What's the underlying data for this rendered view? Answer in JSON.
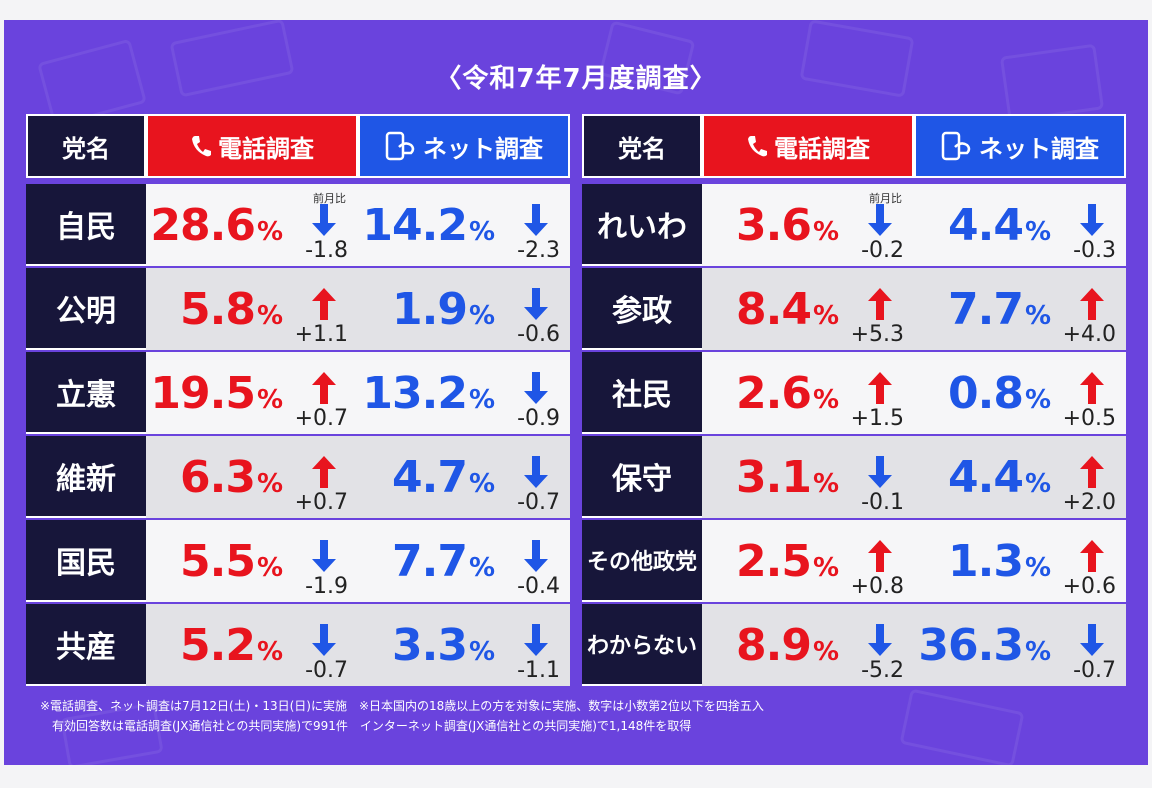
{
  "title": "〈令和7年7月度調査〉",
  "headers": {
    "party": "党名",
    "phone": "電話調査",
    "net": "ネット調査",
    "change_label": "前月比"
  },
  "colors": {
    "background": "#6a43dd",
    "phone": "#e8141e",
    "net": "#1f56e6",
    "party": "#17163a",
    "up": "#e8141e",
    "down": "#1f56e6"
  },
  "icons": {
    "phone": "phone-icon",
    "net": "smartphone-touch-icon"
  },
  "chart_data": {
    "type": "table",
    "title": "〈令和7年7月度調査〉",
    "columns": [
      "党名",
      "電話調査",
      "前月比",
      "ネット調査",
      "前月比"
    ],
    "rows_left": [
      {
        "party": "自民",
        "phone": "28.6",
        "phone_change": "-1.8",
        "net": "14.2",
        "net_change": "-2.3"
      },
      {
        "party": "公明",
        "phone": "5.8",
        "phone_change": "+1.1",
        "net": "1.9",
        "net_change": "-0.6"
      },
      {
        "party": "立憲",
        "phone": "19.5",
        "phone_change": "+0.7",
        "net": "13.2",
        "net_change": "-0.9"
      },
      {
        "party": "維新",
        "phone": "6.3",
        "phone_change": "+0.7",
        "net": "4.7",
        "net_change": "-0.7"
      },
      {
        "party": "国民",
        "phone": "5.5",
        "phone_change": "-1.9",
        "net": "7.7",
        "net_change": "-0.4"
      },
      {
        "party": "共産",
        "phone": "5.2",
        "phone_change": "-0.7",
        "net": "3.3",
        "net_change": "-1.1"
      }
    ],
    "rows_right": [
      {
        "party": "れいわ",
        "phone": "3.6",
        "phone_change": "-0.2",
        "net": "4.4",
        "net_change": "-0.3"
      },
      {
        "party": "参政",
        "phone": "8.4",
        "phone_change": "+5.3",
        "net": "7.7",
        "net_change": "+4.0"
      },
      {
        "party": "社民",
        "phone": "2.6",
        "phone_change": "+1.5",
        "net": "0.8",
        "net_change": "+0.5"
      },
      {
        "party": "保守",
        "phone": "3.1",
        "phone_change": "-0.1",
        "net": "4.4",
        "net_change": "+2.0"
      },
      {
        "party": "その他政党",
        "phone": "2.5",
        "phone_change": "+0.8",
        "net": "1.3",
        "net_change": "+0.6"
      },
      {
        "party": "わからない",
        "phone": "8.9",
        "phone_change": "-5.2",
        "net": "36.3",
        "net_change": "-0.7"
      }
    ],
    "unit": "%"
  },
  "notes": [
    "※電話調査、ネット調査は7月12日(土)・13日(日)に実施　※日本国内の18歳以上の方を対象に実施、数字は小数第2位以下を四捨五入",
    "有効回答数は電話調査(JX通信社との共同実施)で991件　インターネット調査(JX通信社との共同実施)で1,148件を取得"
  ]
}
